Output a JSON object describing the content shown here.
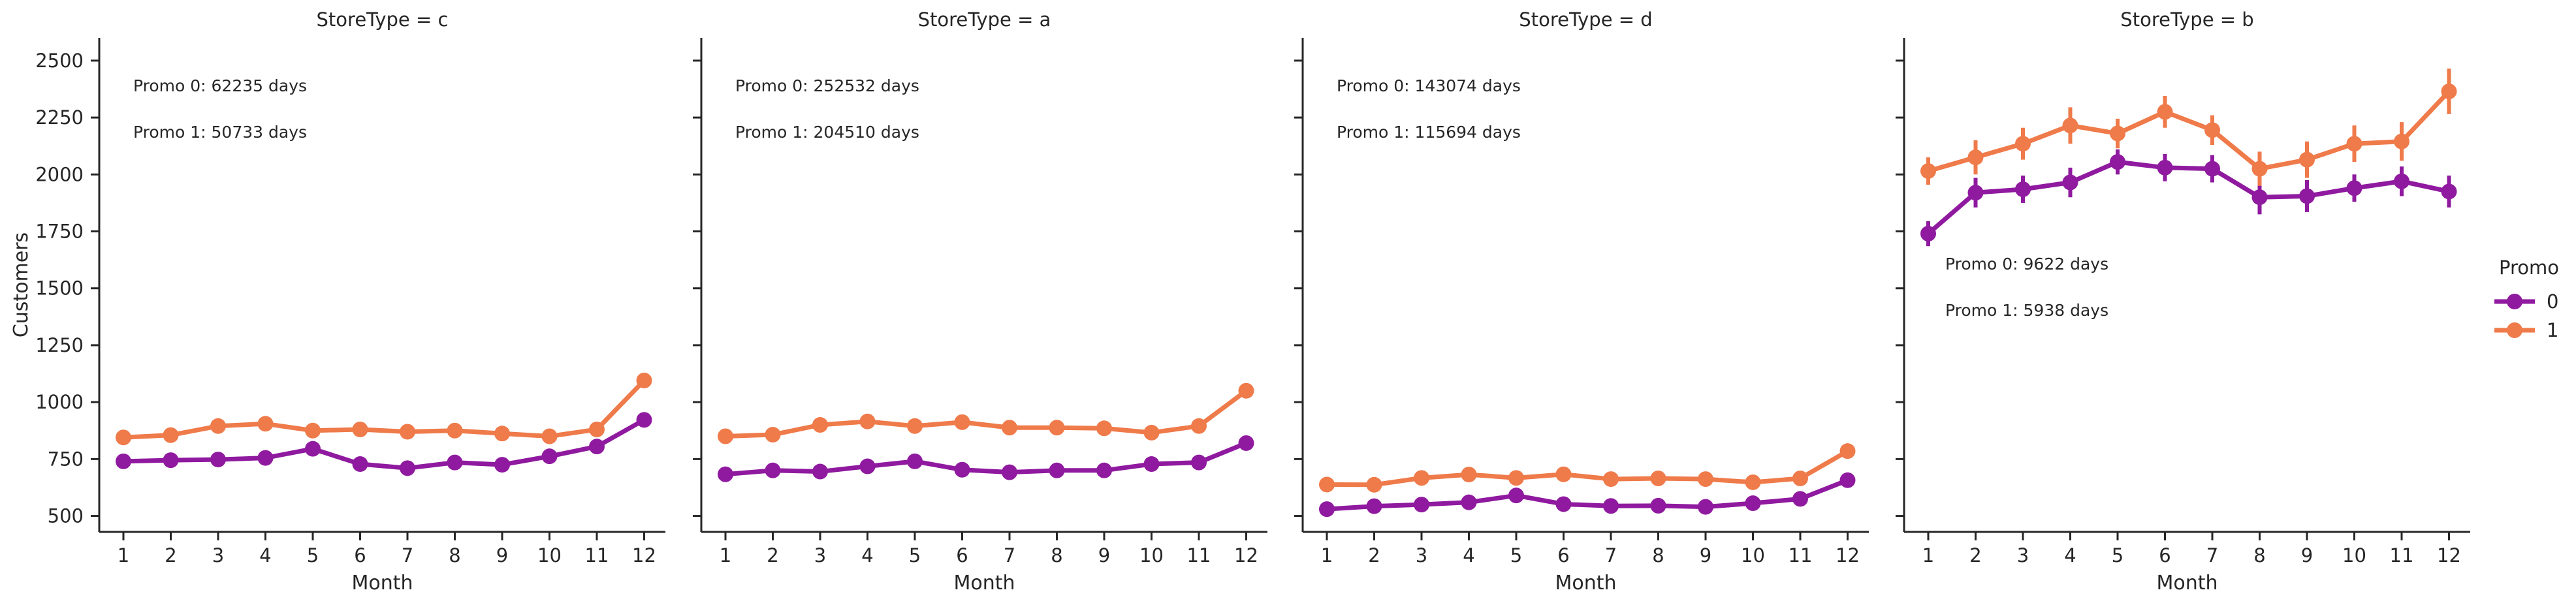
{
  "colors": {
    "promo0": "#8f1a9f",
    "promo1": "#ef7a4a",
    "axis": "#262626"
  },
  "legend": {
    "title": "Promo",
    "entries": [
      "0",
      "1"
    ]
  },
  "chart_data": [
    {
      "type": "line",
      "title": "StoreType = c",
      "xlabel": "Month",
      "ylabel": "Customers",
      "categories": [
        "1",
        "2",
        "3",
        "4",
        "5",
        "6",
        "7",
        "8",
        "9",
        "10",
        "11",
        "12"
      ],
      "ylim": [
        430,
        2600
      ],
      "yticks": [
        "500",
        "750",
        "1000",
        "1250",
        "1500",
        "1750",
        "2000",
        "2250",
        "2500"
      ],
      "series": [
        {
          "name": "0",
          "values": [
            740,
            745,
            748,
            755,
            795,
            728,
            710,
            735,
            725,
            762,
            805,
            922
          ],
          "err": [
            10,
            10,
            10,
            10,
            10,
            10,
            10,
            10,
            10,
            10,
            10,
            12
          ]
        },
        {
          "name": "1",
          "values": [
            845,
            855,
            895,
            905,
            875,
            880,
            870,
            875,
            862,
            850,
            880,
            1095
          ],
          "err": [
            10,
            10,
            10,
            10,
            10,
            10,
            10,
            10,
            10,
            10,
            10,
            14
          ]
        }
      ],
      "annotations": [
        "Promo 0: 62235 days",
        "Promo 1: 50733 days"
      ]
    },
    {
      "type": "line",
      "title": "StoreType = a",
      "xlabel": "Month",
      "ylabel": "",
      "categories": [
        "1",
        "2",
        "3",
        "4",
        "5",
        "6",
        "7",
        "8",
        "9",
        "10",
        "11",
        "12"
      ],
      "ylim": [
        430,
        2600
      ],
      "series": [
        {
          "name": "0",
          "values": [
            683,
            700,
            695,
            718,
            740,
            703,
            692,
            700,
            700,
            728,
            735,
            820
          ],
          "err": [
            8,
            8,
            8,
            8,
            8,
            8,
            8,
            8,
            8,
            8,
            8,
            10
          ]
        },
        {
          "name": "1",
          "values": [
            850,
            857,
            900,
            915,
            895,
            912,
            888,
            888,
            885,
            866,
            895,
            1050
          ],
          "err": [
            8,
            8,
            8,
            8,
            8,
            8,
            8,
            8,
            8,
            8,
            8,
            12
          ]
        }
      ],
      "annotations": [
        "Promo 0: 252532 days",
        "Promo 1: 204510 days"
      ]
    },
    {
      "type": "line",
      "title": "StoreType = d",
      "xlabel": "Month",
      "ylabel": "",
      "categories": [
        "1",
        "2",
        "3",
        "4",
        "5",
        "6",
        "7",
        "8",
        "9",
        "10",
        "11",
        "12"
      ],
      "ylim": [
        430,
        2600
      ],
      "series": [
        {
          "name": "0",
          "values": [
            530,
            543,
            550,
            560,
            590,
            552,
            544,
            545,
            540,
            556,
            575,
            657
          ],
          "err": [
            8,
            8,
            8,
            8,
            8,
            8,
            8,
            8,
            8,
            8,
            8,
            10
          ]
        },
        {
          "name": "1",
          "values": [
            638,
            637,
            667,
            682,
            667,
            683,
            662,
            665,
            662,
            648,
            665,
            785
          ],
          "err": [
            8,
            8,
            8,
            8,
            8,
            8,
            8,
            8,
            8,
            8,
            8,
            12
          ]
        }
      ],
      "annotations": [
        "Promo 0: 143074 days",
        "Promo 1: 115694 days"
      ]
    },
    {
      "type": "line",
      "title": "StoreType = b",
      "xlabel": "Month",
      "ylabel": "",
      "categories": [
        "1",
        "2",
        "3",
        "4",
        "5",
        "6",
        "7",
        "8",
        "9",
        "10",
        "11",
        "12"
      ],
      "ylim": [
        430,
        2600
      ],
      "series": [
        {
          "name": "0",
          "values": [
            1740,
            1920,
            1935,
            1965,
            2055,
            2030,
            2025,
            1900,
            1905,
            1940,
            1970,
            1925
          ],
          "err": [
            55,
            65,
            60,
            65,
            55,
            60,
            60,
            75,
            70,
            60,
            65,
            70
          ]
        },
        {
          "name": "1",
          "values": [
            2015,
            2075,
            2135,
            2215,
            2180,
            2275,
            2195,
            2025,
            2065,
            2135,
            2145,
            2365
          ],
          "err": [
            60,
            75,
            70,
            80,
            65,
            70,
            65,
            75,
            80,
            80,
            85,
            100
          ]
        }
      ],
      "annotations": [
        "Promo 0: 9622 days",
        "Promo 1: 5938 days"
      ]
    }
  ]
}
